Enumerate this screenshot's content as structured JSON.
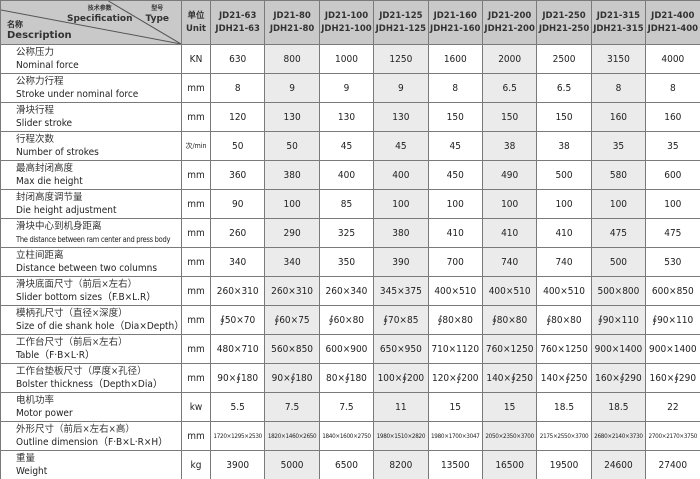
{
  "header": {
    "spec_cn": "技术参数",
    "spec_en": "Specification",
    "type_cn": "型号",
    "type_en": "Type",
    "desc_cn": "名称",
    "desc_en": "Description",
    "unit_cn": "单位",
    "unit_en": "Unit",
    "models": [
      [
        "JD21-63",
        "JDH21-63"
      ],
      [
        "JD21-80",
        "JDH21-80"
      ],
      [
        "JD21-100",
        "JDH21-100"
      ],
      [
        "JD21-125",
        "JDH21-125"
      ],
      [
        "JD21-160",
        "JDH21-160"
      ],
      [
        "JD21-200",
        "JDH21-200"
      ],
      [
        "JD21-250",
        "JDH21-250"
      ],
      [
        "JD21-315",
        "JDH21-315"
      ],
      [
        "JD21-400",
        "JDH21-400"
      ]
    ]
  },
  "rows": [
    {
      "cn": "公称压力",
      "en": "Nominal force",
      "unit": "KN",
      "values": [
        "630",
        "800",
        "1000",
        "1250",
        "1600",
        "2000",
        "2500",
        "3150",
        "4000"
      ]
    },
    {
      "cn": "公称力行程",
      "en": "Stroke under nominal force",
      "unit": "mm",
      "values": [
        "8",
        "9",
        "9",
        "9",
        "8",
        "6.5",
        "6.5",
        "8",
        "8"
      ]
    },
    {
      "cn": "滑块行程",
      "en": "Slider stroke",
      "unit": "mm",
      "values": [
        "120",
        "130",
        "130",
        "130",
        "150",
        "150",
        "150",
        "160",
        "160"
      ]
    },
    {
      "cn": "行程次数",
      "en": "Number of strokes",
      "unit": "次/min",
      "values": [
        "50",
        "50",
        "45",
        "45",
        "45",
        "38",
        "38",
        "35",
        "35"
      ]
    },
    {
      "cn": "最高封闭高度",
      "en": "Max die height",
      "unit": "mm",
      "values": [
        "360",
        "380",
        "400",
        "400",
        "450",
        "490",
        "500",
        "580",
        "600"
      ]
    },
    {
      "cn": "封闭高度调节量",
      "en": "Die height adjustment",
      "unit": "mm",
      "values": [
        "90",
        "100",
        "85",
        "100",
        "100",
        "100",
        "100",
        "100",
        "100"
      ]
    },
    {
      "cn": "滑块中心到机身距离",
      "en": "The distance between ram center and press body",
      "unit": "mm",
      "values": [
        "260",
        "290",
        "325",
        "380",
        "410",
        "410",
        "410",
        "475",
        "475"
      ]
    },
    {
      "cn": "立柱间距离",
      "en": "Distance between two columns",
      "unit": "mm",
      "values": [
        "340",
        "340",
        "350",
        "390",
        "700",
        "740",
        "740",
        "500",
        "530"
      ]
    },
    {
      "cn": "滑块底面尺寸（前后×左右）",
      "en": "Slider bottom sizes（F.B×L.R）",
      "unit": "mm",
      "values": [
        "260×310",
        "260×310",
        "260×340",
        "345×375",
        "400×510",
        "400×510",
        "400×510",
        "500×800",
        "600×850"
      ]
    },
    {
      "cn": "模柄孔尺寸（直径×深度）",
      "en": "Size of die shank hole（Dia×Depth）",
      "unit": "mm",
      "values": [
        "∮50×70",
        "∮60×75",
        "∮60×80",
        "∮70×85",
        "∮80×80",
        "∮80×80",
        "∮80×80",
        "∮90×110",
        "∮90×110"
      ]
    },
    {
      "cn": "工作台尺寸（前后×左右）",
      "en": "Table（F·B×L·R）",
      "unit": "mm",
      "values": [
        "480×710",
        "560×850",
        "600×900",
        "650×950",
        "710×1120",
        "760×1250",
        "760×1250",
        "900×1400",
        "900×1400"
      ]
    },
    {
      "cn": "工作台垫板尺寸（厚度×孔径）",
      "en": "Bolster thickness（Depth×Dia）",
      "unit": "mm",
      "values": [
        "90×∮180",
        "90×∮180",
        "80×∮180",
        "100×∮200",
        "120×∮200",
        "140×∮250",
        "140×∮250",
        "160×∮290",
        "160×∮290"
      ]
    },
    {
      "cn": "电机功率",
      "en": "Motor power",
      "unit": "kw",
      "values": [
        "5.5",
        "7.5",
        "7.5",
        "11",
        "15",
        "15",
        "18.5",
        "18.5",
        "22"
      ]
    },
    {
      "cn": "外形尺寸（前后×左右×高）",
      "en": "Outline dimension（F·B×L·R×H）",
      "unit": "mm",
      "values": [
        "1720×1295×2530",
        "1820×1460×2650",
        "1840×1600×2750",
        "1980×1510×2820",
        "1980×1700×3047",
        "2050×2350×3700",
        "2175×2550×3700",
        "2680×2140×3730",
        "2700×2170×3750"
      ]
    },
    {
      "cn": "重量",
      "en": "Weight",
      "unit": "kg",
      "values": [
        "3900",
        "5000",
        "6500",
        "8200",
        "13500",
        "16500",
        "19500",
        "24600",
        "27400"
      ]
    }
  ],
  "colors": {
    "header_bg": "#c9c9c9",
    "shade": "#ebebeb",
    "border": "#7a7a7a"
  }
}
